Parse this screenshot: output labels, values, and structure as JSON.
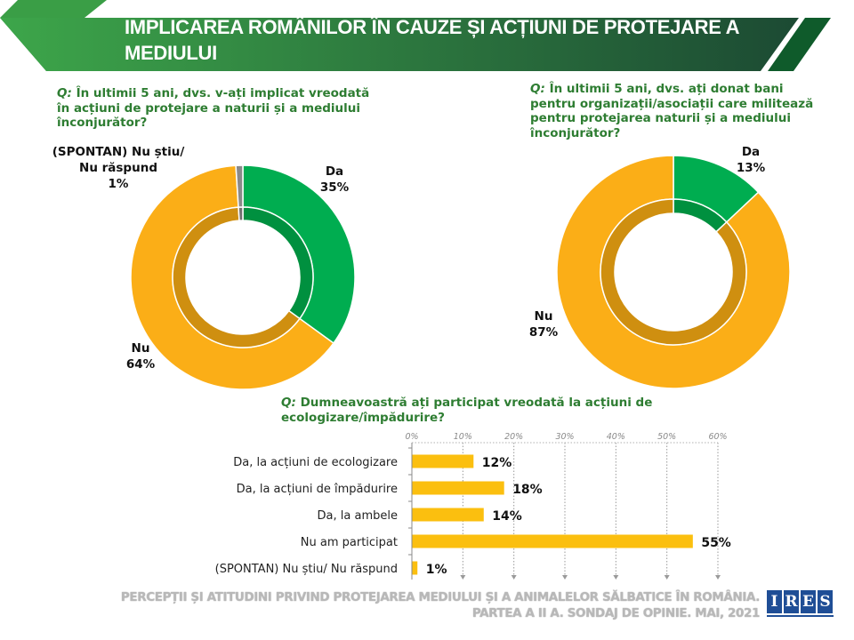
{
  "header": {
    "title": "IMPLICAREA ROMÂNILOR ÎN CAUZE ȘI ACȚIUNI DE PROTEJARE A MEDIULUI"
  },
  "colors": {
    "banner_light": "#3da64a",
    "banner_dark": "#1c4a33",
    "accent_green": "#00ad50",
    "accent_green_dark": "#00903f",
    "accent_orange": "#fbae17",
    "accent_orange_dark": "#cf8f10",
    "gray": "#8a8a8a",
    "bar": "#fbbf0f",
    "question_text": "#2e7d32"
  },
  "footer": {
    "line1": "PERCEPȚII ȘI ATITUDINI PRIVIND PROTEJAREA  MEDIULUI ȘI A ANIMALELOR SĂLBATICE ÎN ROMÂNIA.",
    "line2": "PARTEA A II A. SONDAJ DE OPINIE. MAI, 2021",
    "logo_letters": [
      "I",
      "R",
      "E",
      "S"
    ]
  },
  "chart_data": [
    {
      "type": "pie",
      "variant": "donut",
      "title": "",
      "question_prefix": "Q:",
      "question": " În ultimii 5 ani, dvs. v-ați implicat vreodată în acțiuni de protejare a naturii și a mediului înconjurător?",
      "slices": [
        {
          "label": "Da",
          "value": 35,
          "value_label": "35%",
          "color": "#00ad50",
          "inner_color": "#00903f"
        },
        {
          "label": "Nu",
          "value": 64,
          "value_label": "64%",
          "color": "#fbae17",
          "inner_color": "#cf8f10"
        },
        {
          "label": "(SPONTAN) Nu știu/ Nu răspund",
          "value": 1,
          "value_label": "1%",
          "color": "#8a8a8a",
          "inner_color": "#6f6f6f"
        }
      ]
    },
    {
      "type": "pie",
      "variant": "donut",
      "title": "",
      "question_prefix": "Q:",
      "question": " În ultimii 5 ani, dvs. ați donat bani pentru organizații/asociații care militează pentru protejarea naturii și a mediului înconjurător?",
      "slices": [
        {
          "label": "Da",
          "value": 13,
          "value_label": "13%",
          "color": "#00ad50",
          "inner_color": "#00903f"
        },
        {
          "label": "Nu",
          "value": 87,
          "value_label": "87%",
          "color": "#fbae17",
          "inner_color": "#cf8f10"
        }
      ]
    },
    {
      "type": "bar",
      "orientation": "horizontal",
      "question_prefix": "Q:",
      "question": " Dumneavoastră ați participat vreodată la acțiuni de ecologizare/împădurire?",
      "categories": [
        "Da, la acțiuni de ecologizare",
        "Da, la acțiuni de împădurire",
        "Da, la ambele",
        "Nu am participat",
        "(SPONTAN) Nu știu/ Nu răspund"
      ],
      "values": [
        12,
        18,
        14,
        55,
        1
      ],
      "value_labels": [
        "12%",
        "18%",
        "14%",
        "55%",
        "1%"
      ],
      "xlim": [
        0,
        60
      ],
      "xticks": [
        0,
        10,
        20,
        30,
        40,
        50,
        60
      ],
      "xtick_labels": [
        "0%",
        "10%",
        "20%",
        "30%",
        "40%",
        "50%",
        "60%"
      ],
      "xaxis_position": "top",
      "grid": true,
      "xlabel": "",
      "ylabel": ""
    }
  ]
}
